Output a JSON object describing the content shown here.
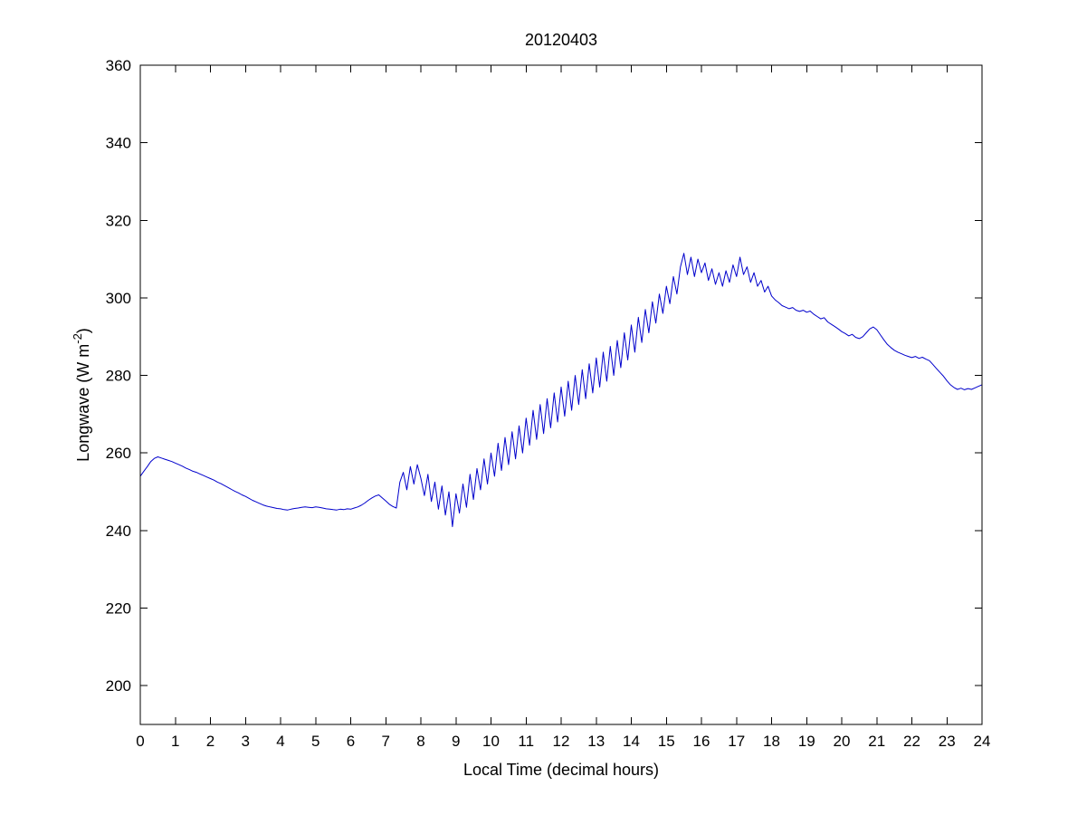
{
  "chart_data": {
    "type": "line",
    "title": "20120403",
    "xlabel": "Local Time (decimal hours)",
    "ylabel": "Longwave (W m⁻²)",
    "ylabel_rich": {
      "pre": "Longwave (W m",
      "sup": "-2",
      "post": ")"
    },
    "xlim": [
      0,
      24
    ],
    "ylim": [
      190,
      360
    ],
    "xticks": [
      0,
      1,
      2,
      3,
      4,
      5,
      6,
      7,
      8,
      9,
      10,
      11,
      12,
      13,
      14,
      15,
      16,
      17,
      18,
      19,
      20,
      21,
      22,
      23,
      24
    ],
    "yticks": [
      200,
      220,
      240,
      260,
      280,
      300,
      320,
      340,
      360
    ],
    "grid": false,
    "legend": "none",
    "line_color": "#0000CC",
    "axis_color": "#000000",
    "background": "#FFFFFF",
    "series_name": "longwave-radiation",
    "x_start": 0,
    "x_step": 0.1,
    "y": [
      254.0,
      255.3,
      256.5,
      257.8,
      258.6,
      259.0,
      258.7,
      258.4,
      258.1,
      257.8,
      257.4,
      257.0,
      256.6,
      256.1,
      255.7,
      255.3,
      255.0,
      254.6,
      254.2,
      253.8,
      253.4,
      253.0,
      252.5,
      252.1,
      251.6,
      251.1,
      250.6,
      250.1,
      249.7,
      249.2,
      248.8,
      248.3,
      247.8,
      247.4,
      247.0,
      246.6,
      246.3,
      246.1,
      245.9,
      245.7,
      245.6,
      245.4,
      245.3,
      245.5,
      245.7,
      245.8,
      246.0,
      246.1,
      246.0,
      245.9,
      246.1,
      246.0,
      245.8,
      245.6,
      245.5,
      245.4,
      245.3,
      245.5,
      245.4,
      245.6,
      245.5,
      245.8,
      246.1,
      246.5,
      247.1,
      247.8,
      248.4,
      248.9,
      249.2,
      248.4,
      247.6,
      246.8,
      246.2,
      245.8,
      252.5,
      255.0,
      250.5,
      256.5,
      252.0,
      257.0,
      253.5,
      249.0,
      254.5,
      247.5,
      252.5,
      245.5,
      251.5,
      244.0,
      250.0,
      241.0,
      249.5,
      244.5,
      252.0,
      246.0,
      254.5,
      248.0,
      256.0,
      250.5,
      258.5,
      252.0,
      260.0,
      254.0,
      262.5,
      255.5,
      264.0,
      257.0,
      265.5,
      258.5,
      267.0,
      260.0,
      269.0,
      262.0,
      271.0,
      263.5,
      272.5,
      265.0,
      274.0,
      266.5,
      275.5,
      268.0,
      277.0,
      269.5,
      278.5,
      271.0,
      280.0,
      272.5,
      281.5,
      274.0,
      283.0,
      275.5,
      284.5,
      277.0,
      286.0,
      278.5,
      287.5,
      280.0,
      289.0,
      282.0,
      291.0,
      284.0,
      293.0,
      286.0,
      295.0,
      288.5,
      297.0,
      291.0,
      299.0,
      293.5,
      301.0,
      296.0,
      303.0,
      298.5,
      305.5,
      301.0,
      308.0,
      311.5,
      306.0,
      310.5,
      305.5,
      310.0,
      306.5,
      309.0,
      304.5,
      307.5,
      303.5,
      306.5,
      303.0,
      307.0,
      304.0,
      308.5,
      305.5,
      310.5,
      306.0,
      308.0,
      304.0,
      306.5,
      303.0,
      304.5,
      301.5,
      303.0,
      300.5,
      299.5,
      298.8,
      298.0,
      297.6,
      297.2,
      297.5,
      296.8,
      296.5,
      296.8,
      296.3,
      296.6,
      295.8,
      295.2,
      294.6,
      294.9,
      293.8,
      293.2,
      292.6,
      292.0,
      291.3,
      290.8,
      290.2,
      290.6,
      289.8,
      289.5,
      290.0,
      291.0,
      292.0,
      292.5,
      291.8,
      290.5,
      289.2,
      288.0,
      287.2,
      286.5,
      286.0,
      285.6,
      285.2,
      284.9,
      284.6,
      284.9,
      284.4,
      284.7,
      284.2,
      283.8,
      282.8,
      281.8,
      280.8,
      279.8,
      278.6,
      277.6,
      276.9,
      276.4,
      276.7,
      276.3,
      276.6,
      276.4,
      276.8,
      277.2,
      277.6
    ]
  }
}
